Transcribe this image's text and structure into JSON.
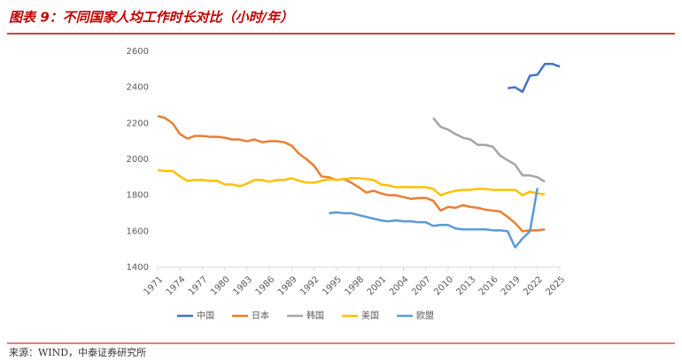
{
  "chart_data": {
    "type": "line",
    "title": "图表 9：不同国家人均工作时长对比（小时/年）",
    "source": "来源：WIND，中泰证券研究所",
    "x": [
      1971,
      1972,
      1973,
      1974,
      1975,
      1976,
      1977,
      1978,
      1979,
      1980,
      1981,
      1982,
      1983,
      1984,
      1985,
      1986,
      1987,
      1988,
      1989,
      1990,
      1991,
      1992,
      1993,
      1994,
      1995,
      1996,
      1997,
      1998,
      1999,
      2000,
      2001,
      2002,
      2003,
      2004,
      2005,
      2006,
      2007,
      2008,
      2009,
      2010,
      2011,
      2012,
      2013,
      2014,
      2015,
      2016,
      2017,
      2018,
      2019,
      2020,
      2021,
      2022,
      2023,
      2024,
      2025
    ],
    "xlim": [
      1971,
      2025
    ],
    "xticks": [
      1971,
      1974,
      1977,
      1980,
      1983,
      1986,
      1989,
      1992,
      1995,
      1998,
      2001,
      2004,
      2007,
      2010,
      2013,
      2016,
      2019,
      2022,
      2025
    ],
    "ylim": [
      1400,
      2600
    ],
    "yticks": [
      1400,
      1600,
      1800,
      2000,
      2200,
      2400,
      2600
    ],
    "legend": "bottom",
    "series": [
      {
        "name": "中国",
        "color": "#4472c4",
        "values": [
          null,
          null,
          null,
          null,
          null,
          null,
          null,
          null,
          null,
          null,
          null,
          null,
          null,
          null,
          null,
          null,
          null,
          null,
          null,
          null,
          null,
          null,
          null,
          null,
          null,
          null,
          null,
          null,
          null,
          null,
          null,
          null,
          null,
          null,
          null,
          null,
          null,
          null,
          null,
          null,
          null,
          null,
          null,
          null,
          null,
          null,
          null,
          2395,
          2400,
          2375,
          2465,
          2470,
          2530,
          2530,
          2515
        ]
      },
      {
        "name": "日本",
        "color": "#ed7d31",
        "values": [
          2240,
          2230,
          2200,
          2140,
          2115,
          2130,
          2130,
          2125,
          2125,
          2120,
          2110,
          2110,
          2100,
          2110,
          2095,
          2100,
          2100,
          2095,
          2075,
          2030,
          2000,
          1965,
          1905,
          1900,
          1885,
          1890,
          1870,
          1845,
          1815,
          1825,
          1810,
          1800,
          1800,
          1790,
          1780,
          1785,
          1785,
          1770,
          1715,
          1735,
          1730,
          1745,
          1735,
          1730,
          1720,
          1715,
          1710,
          1680,
          1645,
          1600,
          1605,
          1605,
          1610,
          null,
          null
        ]
      },
      {
        "name": "韩国",
        "color": "#a5a5a5",
        "values": [
          null,
          null,
          null,
          null,
          null,
          null,
          null,
          null,
          null,
          null,
          null,
          null,
          null,
          null,
          null,
          null,
          null,
          null,
          null,
          null,
          null,
          null,
          null,
          null,
          null,
          null,
          null,
          null,
          null,
          null,
          null,
          null,
          null,
          null,
          null,
          null,
          null,
          2230,
          2180,
          2165,
          2140,
          2120,
          2110,
          2080,
          2080,
          2070,
          2020,
          1995,
          1970,
          1910,
          1910,
          1900,
          1875,
          null,
          null
        ]
      },
      {
        "name": "美国",
        "color": "#ffc000",
        "values": [
          1940,
          1935,
          1935,
          1905,
          1880,
          1885,
          1885,
          1880,
          1880,
          1860,
          1860,
          1850,
          1865,
          1885,
          1885,
          1875,
          1885,
          1885,
          1895,
          1880,
          1870,
          1870,
          1880,
          1890,
          1885,
          1890,
          1895,
          1895,
          1890,
          1885,
          1860,
          1855,
          1845,
          1845,
          1845,
          1845,
          1845,
          1835,
          1800,
          1815,
          1825,
          1830,
          1830,
          1835,
          1835,
          1830,
          1830,
          1830,
          1830,
          1800,
          1820,
          1810,
          1805,
          null,
          null
        ]
      },
      {
        "name": "欧盟",
        "color": "#5b9bd5",
        "values": [
          null,
          null,
          null,
          null,
          null,
          null,
          null,
          null,
          null,
          null,
          null,
          null,
          null,
          null,
          null,
          null,
          null,
          null,
          null,
          null,
          null,
          null,
          null,
          1700,
          1705,
          1700,
          1700,
          1690,
          1680,
          1670,
          1660,
          1655,
          1660,
          1655,
          1655,
          1650,
          1650,
          1630,
          1635,
          1635,
          1615,
          1610,
          1610,
          1610,
          1610,
          1605,
          1605,
          1600,
          1510,
          1560,
          1600,
          1840,
          null,
          null,
          null
        ]
      }
    ]
  }
}
